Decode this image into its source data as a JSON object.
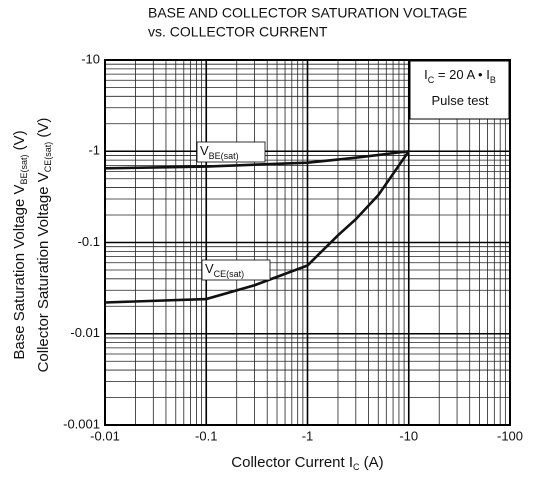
{
  "chart_data": {
    "type": "line",
    "title": [
      "BASE AND COLLECTOR SATURATION VOLTAGE",
      "vs. COLLECTOR CURRENT"
    ],
    "x_label": [
      "Collector Current  I",
      "C",
      "  (A)"
    ],
    "y_label": [
      [
        "Base Saturation Voltage  V",
        "BE(sat)",
        "  (V)"
      ],
      [
        "Collector Saturation Voltage V",
        "CE(sat)",
        "  (V)"
      ]
    ],
    "annotations": [
      [
        "I",
        "C",
        " = 20 A • I",
        "B"
      ],
      [
        "Pulse test"
      ]
    ],
    "log_x": true,
    "log_y": true,
    "grid": true,
    "minor_grid": true,
    "xlim": [
      -0.01,
      -100
    ],
    "xticks": [
      -0.01,
      -0.1,
      -1,
      -10,
      -100
    ],
    "ylim": [
      -0.001,
      -10
    ],
    "yticks": [
      -0.001,
      -0.01,
      -0.1,
      -1,
      -10
    ],
    "series": [
      {
        "name": [
          "V",
          "BE(sat)"
        ],
        "color": "#111111",
        "x": [
          -0.01,
          -0.1,
          -1,
          -3,
          -10
        ],
        "values": [
          -0.65,
          -0.68,
          -0.75,
          -0.85,
          -1.0
        ]
      },
      {
        "name": [
          "V",
          "CE(sat)"
        ],
        "color": "#111111",
        "x": [
          -0.01,
          -0.1,
          -0.3,
          -1,
          -2,
          -3,
          -5,
          -10
        ],
        "values": [
          -0.022,
          -0.024,
          -0.034,
          -0.056,
          -0.12,
          -0.18,
          -0.33,
          -1.0
        ]
      }
    ]
  }
}
